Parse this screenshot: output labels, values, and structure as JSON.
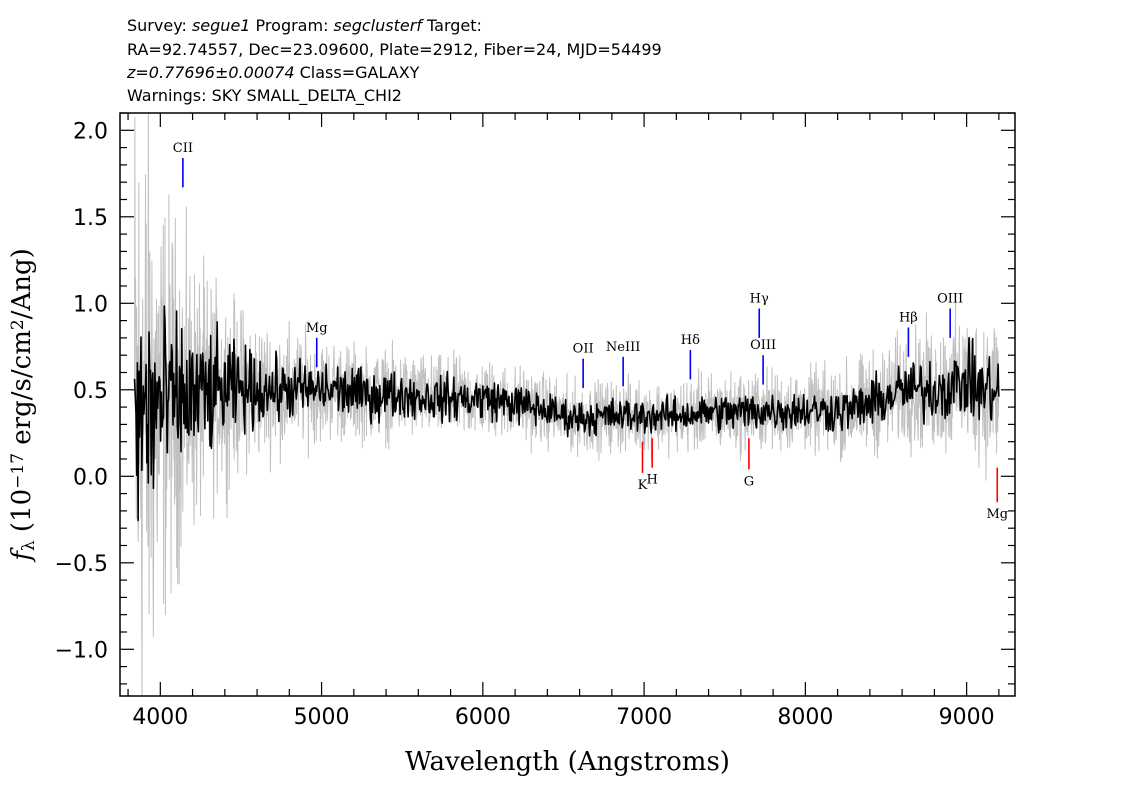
{
  "header": {
    "line1": {
      "survey_label": "Survey: ",
      "survey": "segue1",
      "program_label": " Program: ",
      "program": "segclusterf",
      "target_label": " Target:"
    },
    "line2": "RA=92.74557, Dec=23.09600, Plate=2912, Fiber=24, MJD=54499",
    "line3": {
      "redshift": "z=0.77696±0.00074",
      "class": " Class=GALAXY"
    },
    "line4": "Warnings: SKY SMALL_DELTA_CHI2"
  },
  "chart_data": {
    "type": "line",
    "xlabel": "Wavelength (Angstroms)",
    "ylabel": "f_λ (10^-17 erg/s/cm²/Ang)",
    "xlim": [
      3750,
      9300
    ],
    "ylim": [
      -1.27,
      2.1
    ],
    "x_ticks": [
      {
        "value": 4000,
        "label": "4000"
      },
      {
        "value": 5000,
        "label": "5000"
      },
      {
        "value": 6000,
        "label": "6000"
      },
      {
        "value": 7000,
        "label": "7000"
      },
      {
        "value": 8000,
        "label": "8000"
      },
      {
        "value": 9000,
        "label": "9000"
      }
    ],
    "y_ticks": [
      {
        "value": -1.0,
        "label": "−1.0"
      },
      {
        "value": -0.5,
        "label": "−0.5"
      },
      {
        "value": 0.0,
        "label": "0.0"
      },
      {
        "value": 0.5,
        "label": "0.5"
      },
      {
        "value": 1.0,
        "label": "1.0"
      },
      {
        "value": 1.5,
        "label": "1.5"
      },
      {
        "value": 2.0,
        "label": "2.0"
      }
    ],
    "series": [
      {
        "role": "flux",
        "color": "#000000",
        "x": [
          3840,
          3900,
          3950,
          4000,
          4050,
          4100,
          4150,
          4200,
          4300,
          4400,
          4500,
          4600,
          4700,
          4800,
          4900,
          5000,
          5100,
          5200,
          5300,
          5400,
          5500,
          5600,
          5700,
          5800,
          5900,
          6000,
          6100,
          6200,
          6300,
          6400,
          6500,
          6600,
          6700,
          6800,
          6900,
          7000,
          7100,
          7200,
          7300,
          7400,
          7500,
          7600,
          7700,
          7800,
          7900,
          8000,
          8100,
          8200,
          8300,
          8400,
          8500,
          8600,
          8700,
          8800,
          8900,
          9000,
          9100,
          9200
        ],
        "y": [
          0.3,
          0.35,
          0.4,
          0.4,
          0.42,
          0.45,
          0.45,
          0.45,
          0.47,
          0.5,
          0.5,
          0.5,
          0.5,
          0.5,
          0.5,
          0.5,
          0.5,
          0.48,
          0.47,
          0.47,
          0.47,
          0.46,
          0.45,
          0.45,
          0.45,
          0.45,
          0.44,
          0.42,
          0.4,
          0.38,
          0.35,
          0.34,
          0.34,
          0.35,
          0.35,
          0.35,
          0.35,
          0.35,
          0.36,
          0.37,
          0.37,
          0.37,
          0.38,
          0.38,
          0.38,
          0.38,
          0.38,
          0.38,
          0.39,
          0.42,
          0.45,
          0.5,
          0.5,
          0.5,
          0.52,
          0.55,
          0.5,
          0.5
        ],
        "scatter_amplitude": [
          0.6,
          0.55,
          0.5,
          0.4,
          0.35,
          0.3,
          0.3,
          0.28,
          0.25,
          0.2,
          0.17,
          0.15,
          0.13,
          0.12,
          0.11,
          0.11,
          0.11,
          0.1,
          0.1,
          0.1,
          0.09,
          0.09,
          0.09,
          0.09,
          0.09,
          0.09,
          0.08,
          0.08,
          0.08,
          0.07,
          0.07,
          0.07,
          0.07,
          0.07,
          0.07,
          0.07,
          0.07,
          0.07,
          0.07,
          0.07,
          0.08,
          0.08,
          0.08,
          0.08,
          0.08,
          0.08,
          0.08,
          0.09,
          0.09,
          0.1,
          0.1,
          0.11,
          0.12,
          0.13,
          0.13,
          0.14,
          0.15,
          0.16
        ]
      },
      {
        "role": "noise",
        "color": "#c0c0c0",
        "x": [
          3840,
          3900,
          3950,
          4000,
          4050,
          4100,
          4150,
          4200,
          4300,
          4400,
          4500,
          4600,
          4700,
          4800,
          4900,
          5000,
          5100,
          5200,
          5300,
          5400,
          5500,
          5600,
          5700,
          5800,
          5900,
          6000,
          6100,
          6200,
          6300,
          6400,
          6500,
          6600,
          6700,
          6800,
          6900,
          7000,
          7100,
          7200,
          7300,
          7400,
          7500,
          7600,
          7700,
          7800,
          7900,
          8000,
          8100,
          8200,
          8300,
          8400,
          8500,
          8600,
          8700,
          8800,
          8900,
          9000,
          9100,
          9200
        ],
        "y": [
          0.3,
          0.35,
          0.4,
          0.4,
          0.42,
          0.45,
          0.45,
          0.45,
          0.47,
          0.5,
          0.5,
          0.5,
          0.5,
          0.5,
          0.5,
          0.5,
          0.5,
          0.48,
          0.47,
          0.47,
          0.47,
          0.46,
          0.45,
          0.45,
          0.45,
          0.45,
          0.44,
          0.42,
          0.4,
          0.38,
          0.35,
          0.34,
          0.34,
          0.35,
          0.35,
          0.35,
          0.35,
          0.35,
          0.36,
          0.37,
          0.37,
          0.37,
          0.38,
          0.38,
          0.38,
          0.38,
          0.38,
          0.38,
          0.39,
          0.42,
          0.45,
          0.5,
          0.5,
          0.5,
          0.52,
          0.55,
          0.5,
          0.5
        ],
        "scatter_amplitude": [
          1.5,
          1.3,
          1.1,
          0.9,
          0.8,
          0.7,
          0.6,
          0.55,
          0.45,
          0.38,
          0.32,
          0.28,
          0.26,
          0.24,
          0.22,
          0.2,
          0.2,
          0.19,
          0.18,
          0.18,
          0.17,
          0.17,
          0.16,
          0.16,
          0.16,
          0.15,
          0.15,
          0.15,
          0.15,
          0.14,
          0.14,
          0.14,
          0.14,
          0.14,
          0.14,
          0.14,
          0.14,
          0.14,
          0.15,
          0.15,
          0.15,
          0.16,
          0.16,
          0.16,
          0.16,
          0.16,
          0.17,
          0.18,
          0.19,
          0.2,
          0.21,
          0.22,
          0.24,
          0.26,
          0.27,
          0.28,
          0.3,
          0.32
        ]
      }
    ],
    "line_markers": [
      {
        "label": "CII",
        "wavelength": 4140,
        "kind": "emission",
        "y_from": 1.67,
        "y_to": 1.84
      },
      {
        "label": "Mg",
        "wavelength": 4970,
        "kind": "emission",
        "y_from": 0.63,
        "y_to": 0.8
      },
      {
        "label": "OII",
        "wavelength": 6622,
        "kind": "emission",
        "y_from": 0.51,
        "y_to": 0.68
      },
      {
        "label": "NeIII",
        "wavelength": 6870,
        "kind": "emission",
        "y_from": 0.52,
        "y_to": 0.69
      },
      {
        "label": "Hδ",
        "wavelength": 7287,
        "kind": "emission",
        "y_from": 0.56,
        "y_to": 0.73
      },
      {
        "label": "Hγ",
        "wavelength": 7714,
        "kind": "emission",
        "y_from": 0.8,
        "y_to": 0.97
      },
      {
        "label": "OIII",
        "wavelength": 7738,
        "kind": "emission",
        "y_from": 0.53,
        "y_to": 0.7
      },
      {
        "label": "Hβ",
        "wavelength": 8639,
        "kind": "emission",
        "y_from": 0.69,
        "y_to": 0.86
      },
      {
        "label": "OIII",
        "wavelength": 8898,
        "kind": "emission",
        "y_from": 0.8,
        "y_to": 0.97
      },
      {
        "label": "K",
        "wavelength": 6990,
        "kind": "absorption",
        "y_from": 0.02,
        "y_to": 0.2
      },
      {
        "label": "H",
        "wavelength": 7050,
        "kind": "absorption",
        "y_from": 0.05,
        "y_to": 0.22
      },
      {
        "label": "G",
        "wavelength": 7650,
        "kind": "absorption",
        "y_from": 0.04,
        "y_to": 0.22
      },
      {
        "label": "Mg",
        "wavelength": 9190,
        "kind": "absorption",
        "y_from": -0.15,
        "y_to": 0.05
      }
    ],
    "colors": {
      "emission": "#0000ff",
      "absorption": "#ff0000",
      "flux": "#000000",
      "noise": "#c0c0c0",
      "frame": "#000000"
    },
    "grid": false,
    "legend": "none"
  }
}
